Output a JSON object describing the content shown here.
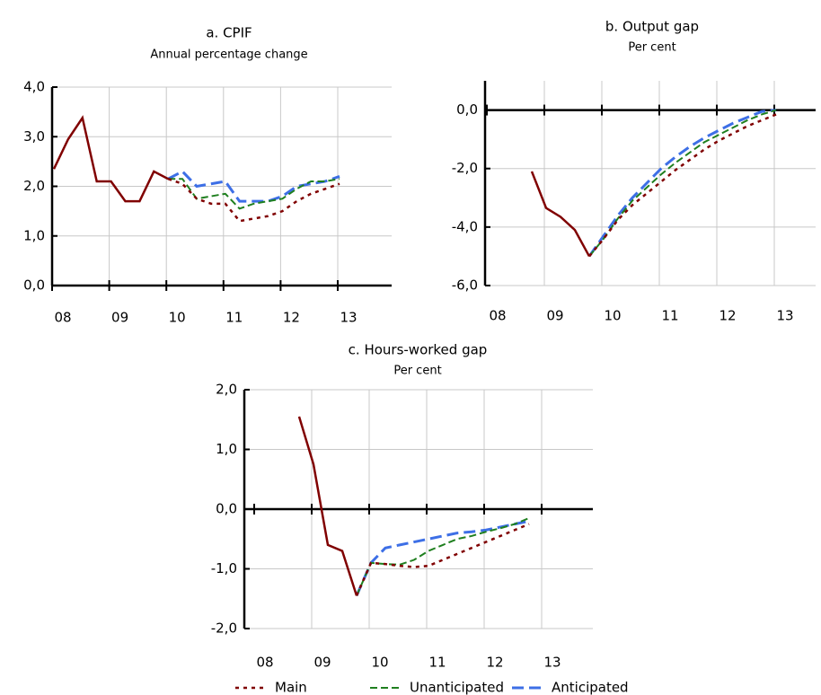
{
  "chart_data": [
    {
      "type": "line",
      "title": "a. CPIF",
      "subtitle": "Annual percentage change",
      "categories": [
        "08",
        null,
        null,
        null,
        "09",
        null,
        null,
        null,
        "10",
        null,
        null,
        null,
        "11",
        null,
        null,
        null,
        "12",
        null,
        null,
        null,
        "13",
        null,
        null,
        null
      ],
      "ylim": [
        0,
        4
      ],
      "yticks": [
        {
          "value": 0,
          "label": "0,0"
        },
        {
          "value": 1,
          "label": "1,0"
        },
        {
          "value": 2,
          "label": "2,0"
        },
        {
          "value": 3,
          "label": "3,0"
        },
        {
          "value": 4,
          "label": "4,0"
        }
      ],
      "grid": true,
      "series": [
        {
          "name": "Main",
          "color": "#800000",
          "values": [
            2.35,
            2.95,
            3.38,
            2.1,
            2.1,
            1.7,
            1.7,
            2.3,
            2.15,
            2.05,
            1.75,
            1.65,
            1.65,
            1.3,
            1.35,
            1.4,
            1.5,
            1.7,
            1.85,
            1.95,
            2.05,
            null,
            null,
            null
          ]
        },
        {
          "name": "Unanticipated",
          "color": "#1f7f1f",
          "values": [
            null,
            null,
            null,
            null,
            null,
            null,
            null,
            null,
            2.15,
            2.15,
            1.75,
            1.8,
            1.85,
            1.55,
            1.65,
            1.7,
            1.75,
            1.95,
            2.1,
            2.1,
            2.15,
            null,
            null,
            null
          ]
        },
        {
          "name": "Anticipated",
          "color": "#3d6fe6",
          "values": [
            null,
            null,
            null,
            null,
            null,
            null,
            null,
            null,
            2.15,
            2.3,
            2.0,
            2.05,
            2.1,
            1.7,
            1.7,
            1.7,
            1.8,
            2.0,
            2.05,
            2.1,
            2.2,
            null,
            null,
            null
          ]
        }
      ]
    },
    {
      "type": "line",
      "title": "b. Output gap",
      "subtitle": "Per cent",
      "categories": [
        "08",
        null,
        null,
        null,
        "09",
        null,
        null,
        null,
        "10",
        null,
        null,
        null,
        "11",
        null,
        null,
        null,
        "12",
        null,
        null,
        null,
        "13",
        null,
        null,
        null
      ],
      "ylim": [
        -6,
        1
      ],
      "yticks": [
        {
          "value": -6,
          "label": "-6,0"
        },
        {
          "value": -4,
          "label": "-4,0"
        },
        {
          "value": -2,
          "label": "-2,0"
        },
        {
          "value": 0,
          "label": "0,0"
        }
      ],
      "grid": true,
      "series": [
        {
          "name": "Main",
          "color": "#800000",
          "values": [
            null,
            null,
            null,
            -2.1,
            -3.35,
            -3.65,
            -4.1,
            -5.0,
            -4.4,
            -3.75,
            -3.25,
            -2.85,
            -2.45,
            -2.05,
            -1.7,
            -1.35,
            -1.05,
            -0.8,
            -0.55,
            -0.35,
            -0.15,
            null,
            null,
            null
          ]
        },
        {
          "name": "Unanticipated",
          "color": "#1f7f1f",
          "values": [
            null,
            null,
            null,
            null,
            null,
            null,
            null,
            -5.0,
            -4.4,
            -3.7,
            -3.1,
            -2.65,
            -2.2,
            -1.8,
            -1.45,
            -1.1,
            -0.85,
            -0.6,
            -0.35,
            -0.15,
            0.0,
            null,
            null,
            null
          ]
        },
        {
          "name": "Anticipated",
          "color": "#3d6fe6",
          "values": [
            null,
            null,
            null,
            null,
            null,
            null,
            null,
            -5.0,
            -4.3,
            -3.6,
            -3.0,
            -2.5,
            -2.0,
            -1.6,
            -1.25,
            -0.95,
            -0.7,
            -0.45,
            -0.25,
            -0.05,
            0.0,
            null,
            null,
            null
          ]
        }
      ]
    },
    {
      "type": "line",
      "title": "c. Hours-worked gap",
      "subtitle": "Per cent",
      "categories": [
        "08",
        null,
        null,
        null,
        "09",
        null,
        null,
        null,
        "10",
        null,
        null,
        null,
        "11",
        null,
        null,
        null,
        "12",
        null,
        null,
        null,
        "13",
        null,
        null,
        null
      ],
      "ylim": [
        -2,
        2
      ],
      "yticks": [
        {
          "value": -2,
          "label": "-2,0"
        },
        {
          "value": -1,
          "label": "-1,0"
        },
        {
          "value": 0,
          "label": "0,0"
        },
        {
          "value": 1,
          "label": "1,0"
        },
        {
          "value": 2,
          "label": "2,0"
        }
      ],
      "grid": true,
      "series": [
        {
          "name": "Main",
          "color": "#800000",
          "values": [
            null,
            null,
            null,
            1.55,
            0.75,
            -0.6,
            -0.7,
            -1.45,
            -0.9,
            -0.92,
            -0.95,
            -0.97,
            -0.95,
            -0.85,
            -0.75,
            -0.65,
            -0.55,
            -0.45,
            -0.35,
            -0.25,
            null,
            null,
            null,
            null
          ]
        },
        {
          "name": "Unanticipated",
          "color": "#1f7f1f",
          "values": [
            null,
            null,
            null,
            null,
            null,
            null,
            null,
            -1.45,
            -0.9,
            -0.92,
            -0.93,
            -0.85,
            -0.7,
            -0.6,
            -0.5,
            -0.45,
            -0.38,
            -0.32,
            -0.25,
            -0.15,
            null,
            null,
            null,
            null
          ]
        },
        {
          "name": "Anticipated",
          "color": "#3d6fe6",
          "values": [
            null,
            null,
            null,
            null,
            null,
            null,
            null,
            -1.45,
            -0.9,
            -0.65,
            -0.6,
            -0.55,
            -0.5,
            -0.45,
            -0.4,
            -0.38,
            -0.35,
            -0.3,
            -0.25,
            -0.2,
            null,
            null,
            null,
            null
          ]
        }
      ]
    }
  ]
}
